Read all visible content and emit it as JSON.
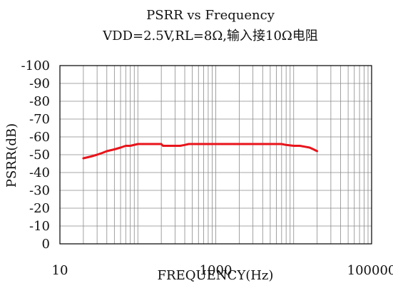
{
  "chart_data": {
    "type": "line",
    "title": "PSRR vs Frequency",
    "subtitle": "VDD=2.5V,RL=8Ω,输入接10Ω电阻",
    "xlabel": "FREQUENCY(Hz)",
    "ylabel": "PSRR(dB)",
    "x_scale": "log",
    "xlim": [
      10,
      100000
    ],
    "x_ticks": [
      {
        "value": 10,
        "label": "10"
      },
      {
        "value": 1000,
        "label": "1000"
      },
      {
        "value": 100000,
        "label": "100000"
      }
    ],
    "ylim": [
      0,
      -100
    ],
    "y_ticks": [
      {
        "value": -100,
        "label": "-100"
      },
      {
        "value": -90,
        "label": "-90"
      },
      {
        "value": -80,
        "label": "-80"
      },
      {
        "value": -70,
        "label": "-70"
      },
      {
        "value": -60,
        "label": "-60"
      },
      {
        "value": -50,
        "label": "-50"
      },
      {
        "value": -40,
        "label": "-40"
      },
      {
        "value": -30,
        "label": "-30"
      },
      {
        "value": -20,
        "label": "-20"
      },
      {
        "value": -10,
        "label": "-10"
      },
      {
        "value": 0,
        "label": "0"
      }
    ],
    "grid": true,
    "series": [
      {
        "color": "#e8141b",
        "x": [
          20,
          25,
          30,
          35,
          40,
          50,
          60,
          70,
          80,
          100,
          150,
          200,
          210,
          250,
          300,
          350,
          400,
          450,
          500,
          700,
          1000,
          2000,
          5000,
          7000,
          8000,
          10000,
          12000,
          14000,
          16000,
          18000,
          20000
        ],
        "y": [
          -48,
          -49,
          -50,
          -51,
          -52,
          -53,
          -54,
          -55,
          -55,
          -56,
          -56,
          -56,
          -55,
          -55,
          -55,
          -55,
          -55.5,
          -56,
          -56,
          -56,
          -56,
          -56,
          -56,
          -56,
          -55.5,
          -55,
          -55,
          -54.5,
          -54,
          -53,
          -52
        ]
      }
    ]
  }
}
